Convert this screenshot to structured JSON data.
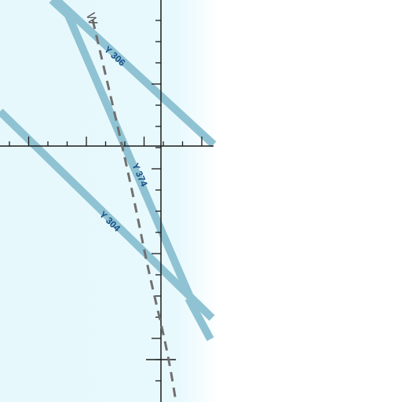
{
  "map": {
    "colors": {
      "water": "#e6f8fc",
      "route": "#8fc3d3",
      "grid": "#1a1a1a",
      "boundary": "#707070",
      "label": "#1a4f8a",
      "paper": "#ffffff"
    },
    "routes": [
      {
        "id": "route-y306",
        "label": "Y 306"
      },
      {
        "id": "route-y374",
        "label": "Y 374"
      },
      {
        "id": "route-y304",
        "label": "Y 304"
      }
    ],
    "boundary_label": "W"
  }
}
